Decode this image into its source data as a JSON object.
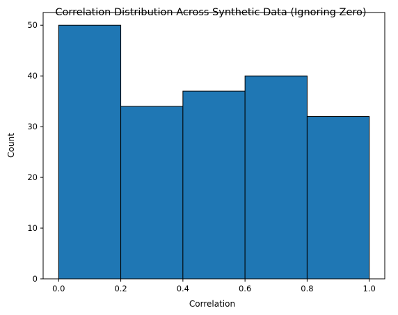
{
  "chart_data": {
    "type": "bar",
    "title": "Correlation Distribution Across Synthetic Data (Ignoring Zero)",
    "xlabel": "Correlation",
    "ylabel": "Count",
    "bins": [
      {
        "start": 0.0,
        "end": 0.2,
        "count": 50
      },
      {
        "start": 0.2,
        "end": 0.4,
        "count": 34
      },
      {
        "start": 0.4,
        "end": 0.6,
        "count": 37
      },
      {
        "start": 0.6,
        "end": 0.8,
        "count": 40
      },
      {
        "start": 0.8,
        "end": 1.0,
        "count": 32
      }
    ],
    "xlim": [
      -0.05,
      1.05
    ],
    "ylim": [
      0,
      52.5
    ],
    "xticks": [
      "0.0",
      "0.2",
      "0.4",
      "0.6",
      "0.8",
      "1.0"
    ],
    "yticks": [
      "0",
      "10",
      "20",
      "30",
      "40",
      "50"
    ],
    "bar_color": "#1f77b4",
    "edge_color": "#000000",
    "grid": false,
    "legend": "none"
  }
}
